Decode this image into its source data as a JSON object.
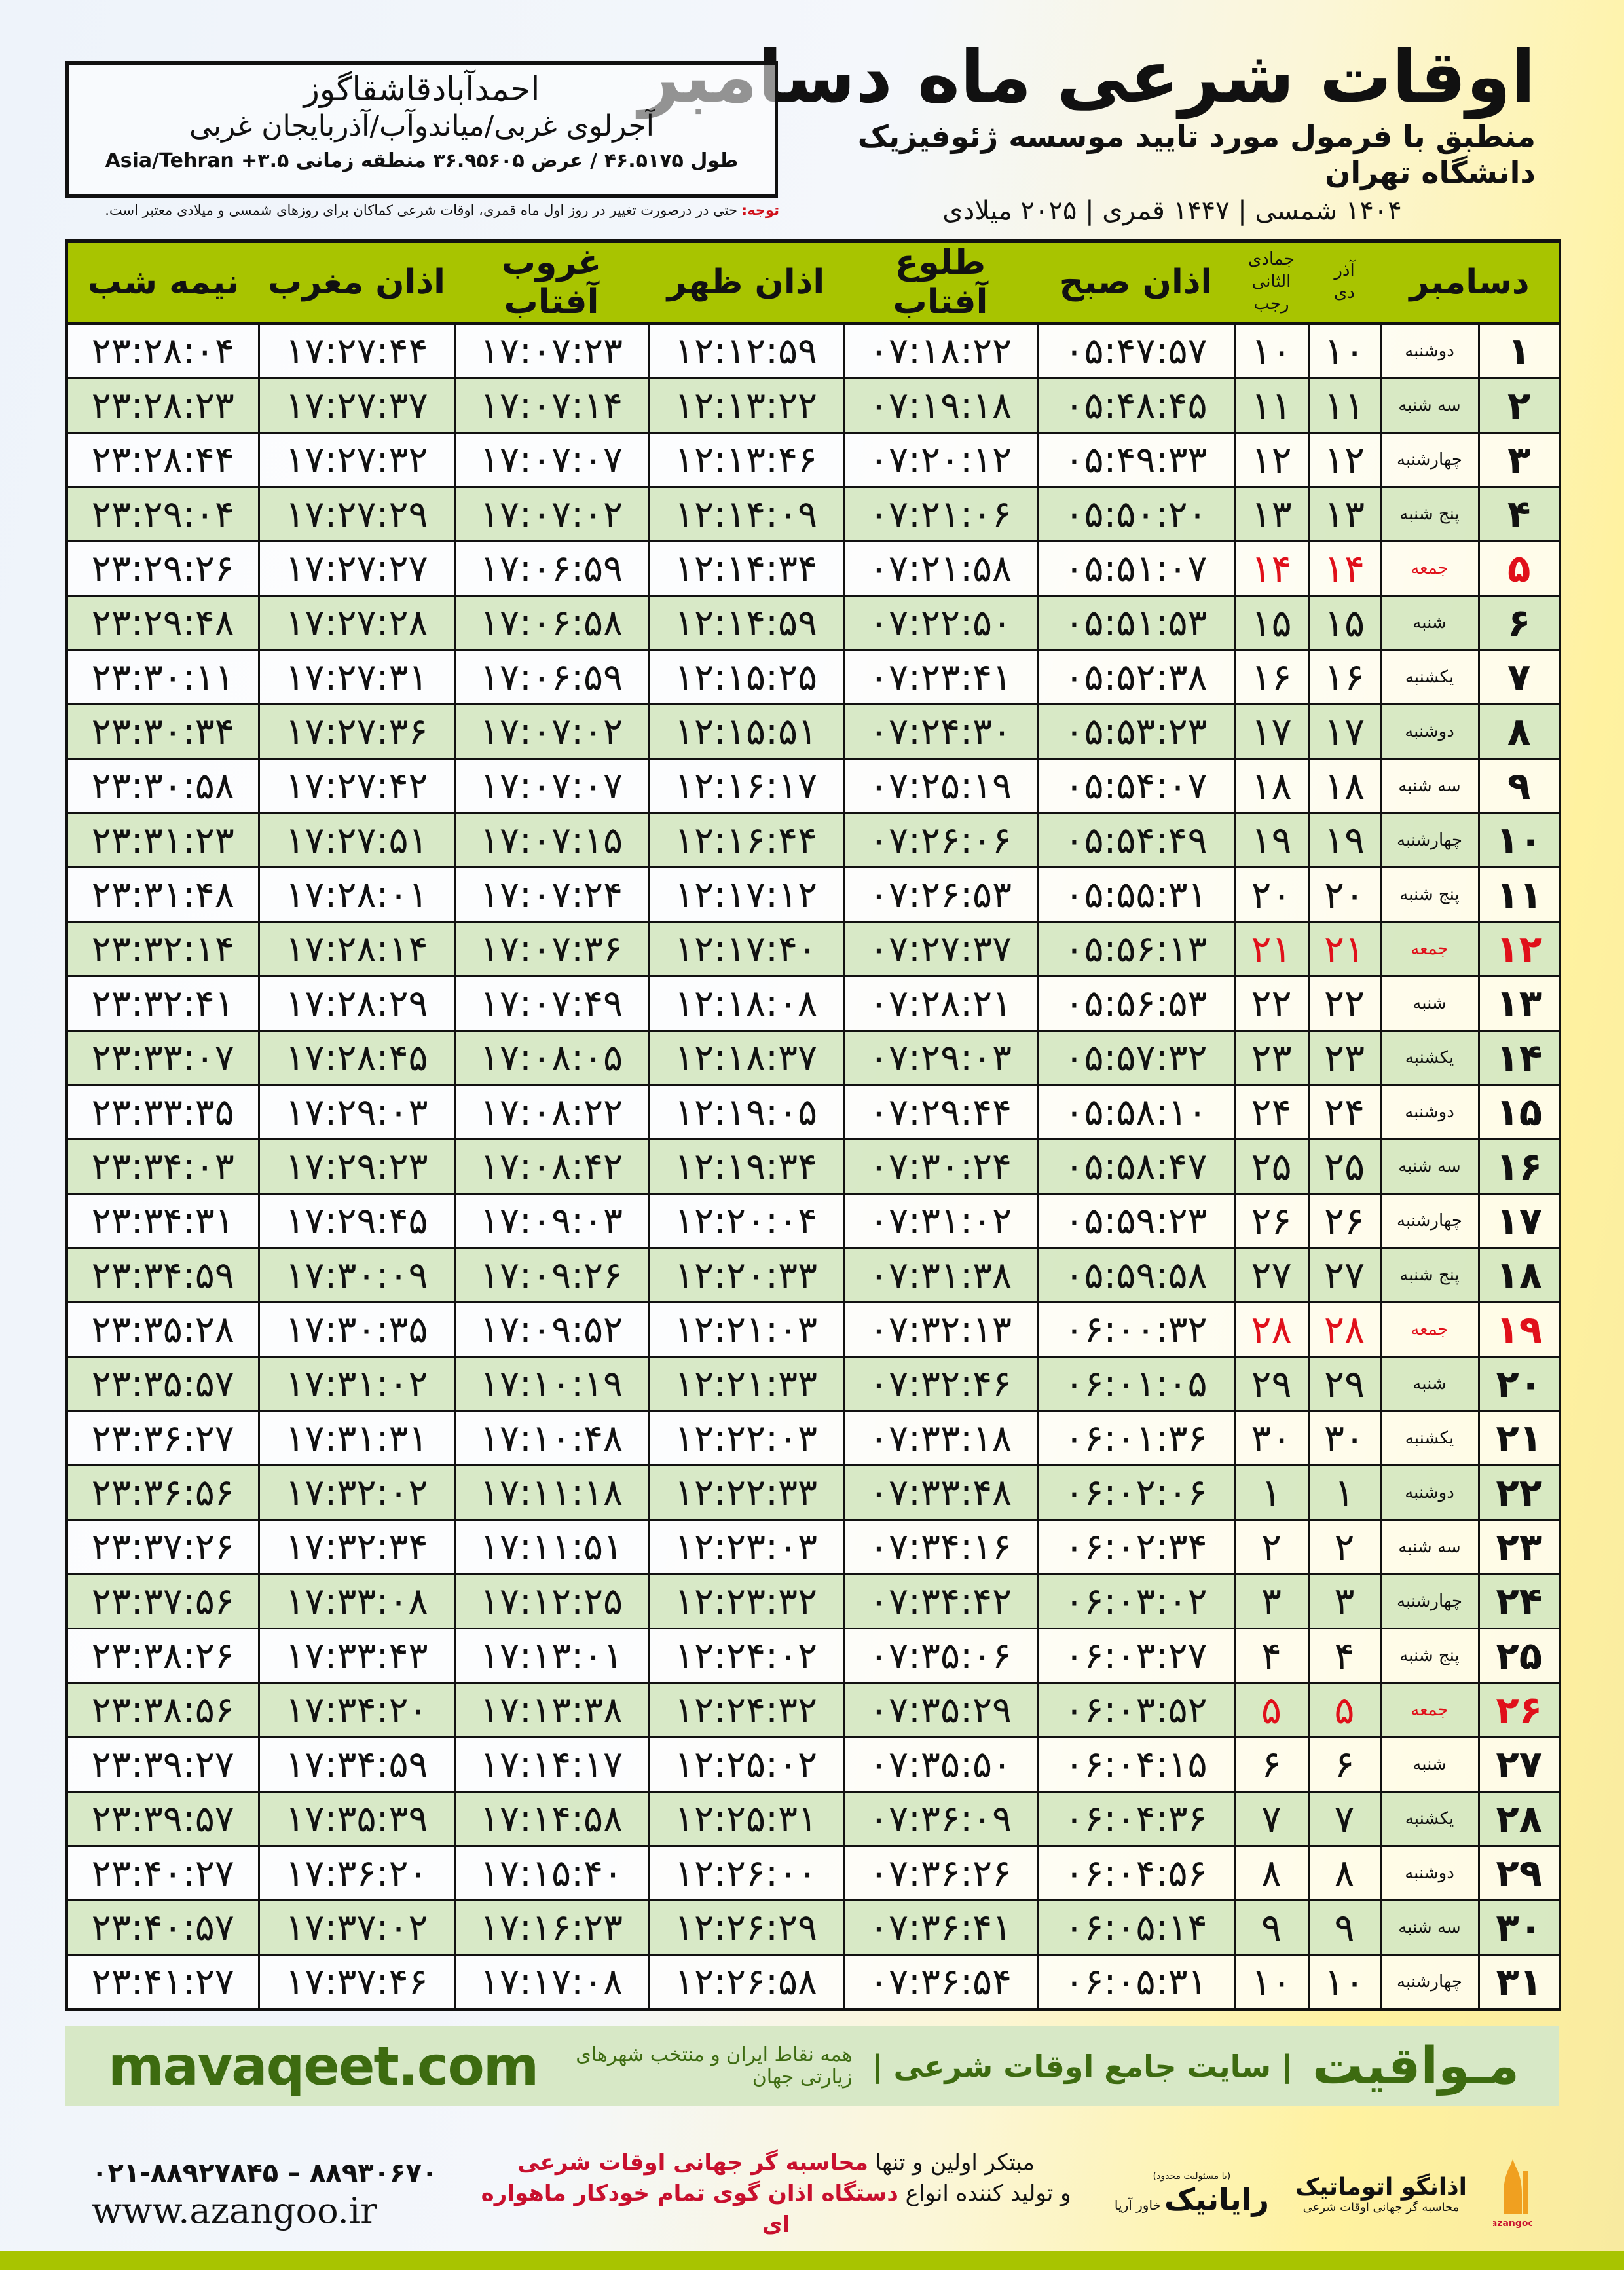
{
  "header": {
    "title": "اوقات شرعی ماه دسامبر",
    "subtitle": "منطبق با فرمول مورد تایید موسسه ژئوفیزیک دانشگاه تهران",
    "dates": "۱۴۰۴ شمسی | ۱۴۴۷ قمری | ۲۰۲۵ میلادی"
  },
  "location": {
    "name": "احمدآبادقاشقاگوز",
    "region": "آجرلوی غربی/میاندوآب/آذربایجان غربی",
    "coords": "طول ۴۶.۵۱۷۵ / عرض ۳۶.۹۵۶۰۵ منطقه زمانی Asia/Tehran +۳.۵"
  },
  "note": {
    "label": "توجه:",
    "text": " حتی در درصورت تغییر در روز اول ماه قمری، اوقات شرعی کماکان برای روزهای شمسی و میلادی معتبر است."
  },
  "table": {
    "columns": {
      "month": "دسامبر",
      "shamsi_top": "آذر",
      "shamsi_bottom": "دی",
      "hijri_top": "جمادی الثانی",
      "hijri_bottom": "رجب",
      "fajr": "اذان صبح",
      "sunrise": "طلوع آفتاب",
      "dhuhr": "اذان ظهر",
      "sunset": "غروب آفتاب",
      "maghrib": "اذان مغرب",
      "midnight": "نیمه شب"
    },
    "friday_color": "#e0101a",
    "header_color": "#a8c400",
    "row_alt_color": "#d6e8c4",
    "fridays": [
      5,
      12,
      19,
      26
    ],
    "rows": [
      [
        "۱",
        "دوشنبه",
        "۱۰",
        "۱۰",
        "۰۵:۴۷:۵۷",
        "۰۷:۱۸:۲۲",
        "۱۲:۱۲:۵۹",
        "۱۷:۰۷:۲۳",
        "۱۷:۲۷:۴۴",
        "۲۳:۲۸:۰۴"
      ],
      [
        "۲",
        "سه شنبه",
        "۱۱",
        "۱۱",
        "۰۵:۴۸:۴۵",
        "۰۷:۱۹:۱۸",
        "۱۲:۱۳:۲۲",
        "۱۷:۰۷:۱۴",
        "۱۷:۲۷:۳۷",
        "۲۳:۲۸:۲۳"
      ],
      [
        "۳",
        "چهارشنبه",
        "۱۲",
        "۱۲",
        "۰۵:۴۹:۳۳",
        "۰۷:۲۰:۱۲",
        "۱۲:۱۳:۴۶",
        "۱۷:۰۷:۰۷",
        "۱۷:۲۷:۳۲",
        "۲۳:۲۸:۴۴"
      ],
      [
        "۴",
        "پنج شنبه",
        "۱۳",
        "۱۳",
        "۰۵:۵۰:۲۰",
        "۰۷:۲۱:۰۶",
        "۱۲:۱۴:۰۹",
        "۱۷:۰۷:۰۲",
        "۱۷:۲۷:۲۹",
        "۲۳:۲۹:۰۴"
      ],
      [
        "۵",
        "جمعه",
        "۱۴",
        "۱۴",
        "۰۵:۵۱:۰۷",
        "۰۷:۲۱:۵۸",
        "۱۲:۱۴:۳۴",
        "۱۷:۰۶:۵۹",
        "۱۷:۲۷:۲۷",
        "۲۳:۲۹:۲۶"
      ],
      [
        "۶",
        "شنبه",
        "۱۵",
        "۱۵",
        "۰۵:۵۱:۵۳",
        "۰۷:۲۲:۵۰",
        "۱۲:۱۴:۵۹",
        "۱۷:۰۶:۵۸",
        "۱۷:۲۷:۲۸",
        "۲۳:۲۹:۴۸"
      ],
      [
        "۷",
        "یکشنبه",
        "۱۶",
        "۱۶",
        "۰۵:۵۲:۳۸",
        "۰۷:۲۳:۴۱",
        "۱۲:۱۵:۲۵",
        "۱۷:۰۶:۵۹",
        "۱۷:۲۷:۳۱",
        "۲۳:۳۰:۱۱"
      ],
      [
        "۸",
        "دوشنبه",
        "۱۷",
        "۱۷",
        "۰۵:۵۳:۲۳",
        "۰۷:۲۴:۳۰",
        "۱۲:۱۵:۵۱",
        "۱۷:۰۷:۰۲",
        "۱۷:۲۷:۳۶",
        "۲۳:۳۰:۳۴"
      ],
      [
        "۹",
        "سه شنبه",
        "۱۸",
        "۱۸",
        "۰۵:۵۴:۰۷",
        "۰۷:۲۵:۱۹",
        "۱۲:۱۶:۱۷",
        "۱۷:۰۷:۰۷",
        "۱۷:۲۷:۴۲",
        "۲۳:۳۰:۵۸"
      ],
      [
        "۱۰",
        "چهارشنبه",
        "۱۹",
        "۱۹",
        "۰۵:۵۴:۴۹",
        "۰۷:۲۶:۰۶",
        "۱۲:۱۶:۴۴",
        "۱۷:۰۷:۱۵",
        "۱۷:۲۷:۵۱",
        "۲۳:۳۱:۲۳"
      ],
      [
        "۱۱",
        "پنج شنبه",
        "۲۰",
        "۲۰",
        "۰۵:۵۵:۳۱",
        "۰۷:۲۶:۵۳",
        "۱۲:۱۷:۱۲",
        "۱۷:۰۷:۲۴",
        "۱۷:۲۸:۰۱",
        "۲۳:۳۱:۴۸"
      ],
      [
        "۱۲",
        "جمعه",
        "۲۱",
        "۲۱",
        "۰۵:۵۶:۱۳",
        "۰۷:۲۷:۳۷",
        "۱۲:۱۷:۴۰",
        "۱۷:۰۷:۳۶",
        "۱۷:۲۸:۱۴",
        "۲۳:۳۲:۱۴"
      ],
      [
        "۱۳",
        "شنبه",
        "۲۲",
        "۲۲",
        "۰۵:۵۶:۵۳",
        "۰۷:۲۸:۲۱",
        "۱۲:۱۸:۰۸",
        "۱۷:۰۷:۴۹",
        "۱۷:۲۸:۲۹",
        "۲۳:۳۲:۴۱"
      ],
      [
        "۱۴",
        "یکشنبه",
        "۲۳",
        "۲۳",
        "۰۵:۵۷:۳۲",
        "۰۷:۲۹:۰۳",
        "۱۲:۱۸:۳۷",
        "۱۷:۰۸:۰۵",
        "۱۷:۲۸:۴۵",
        "۲۳:۳۳:۰۷"
      ],
      [
        "۱۵",
        "دوشنبه",
        "۲۴",
        "۲۴",
        "۰۵:۵۸:۱۰",
        "۰۷:۲۹:۴۴",
        "۱۲:۱۹:۰۵",
        "۱۷:۰۸:۲۲",
        "۱۷:۲۹:۰۳",
        "۲۳:۳۳:۳۵"
      ],
      [
        "۱۶",
        "سه شنبه",
        "۲۵",
        "۲۵",
        "۰۵:۵۸:۴۷",
        "۰۷:۳۰:۲۴",
        "۱۲:۱۹:۳۴",
        "۱۷:۰۸:۴۲",
        "۱۷:۲۹:۲۳",
        "۲۳:۳۴:۰۳"
      ],
      [
        "۱۷",
        "چهارشنبه",
        "۲۶",
        "۲۶",
        "۰۵:۵۹:۲۳",
        "۰۷:۳۱:۰۲",
        "۱۲:۲۰:۰۴",
        "۱۷:۰۹:۰۳",
        "۱۷:۲۹:۴۵",
        "۲۳:۳۴:۳۱"
      ],
      [
        "۱۸",
        "پنج شنبه",
        "۲۷",
        "۲۷",
        "۰۵:۵۹:۵۸",
        "۰۷:۳۱:۳۸",
        "۱۲:۲۰:۳۳",
        "۱۷:۰۹:۲۶",
        "۱۷:۳۰:۰۹",
        "۲۳:۳۴:۵۹"
      ],
      [
        "۱۹",
        "جمعه",
        "۲۸",
        "۲۸",
        "۰۶:۰۰:۳۲",
        "۰۷:۳۲:۱۳",
        "۱۲:۲۱:۰۳",
        "۱۷:۰۹:۵۲",
        "۱۷:۳۰:۳۵",
        "۲۳:۳۵:۲۸"
      ],
      [
        "۲۰",
        "شنبه",
        "۲۹",
        "۲۹",
        "۰۶:۰۱:۰۵",
        "۰۷:۳۲:۴۶",
        "۱۲:۲۱:۳۳",
        "۱۷:۱۰:۱۹",
        "۱۷:۳۱:۰۲",
        "۲۳:۳۵:۵۷"
      ],
      [
        "۲۱",
        "یکشنبه",
        "۳۰",
        "۳۰",
        "۰۶:۰۱:۳۶",
        "۰۷:۳۳:۱۸",
        "۱۲:۲۲:۰۳",
        "۱۷:۱۰:۴۸",
        "۱۷:۳۱:۳۱",
        "۲۳:۳۶:۲۷"
      ],
      [
        "۲۲",
        "دوشنبه",
        "۱",
        "۱",
        "۰۶:۰۲:۰۶",
        "۰۷:۳۳:۴۸",
        "۱۲:۲۲:۳۳",
        "۱۷:۱۱:۱۸",
        "۱۷:۳۲:۰۲",
        "۲۳:۳۶:۵۶"
      ],
      [
        "۲۳",
        "سه شنبه",
        "۲",
        "۲",
        "۰۶:۰۲:۳۴",
        "۰۷:۳۴:۱۶",
        "۱۲:۲۳:۰۳",
        "۱۷:۱۱:۵۱",
        "۱۷:۳۲:۳۴",
        "۲۳:۳۷:۲۶"
      ],
      [
        "۲۴",
        "چهارشنبه",
        "۳",
        "۳",
        "۰۶:۰۳:۰۲",
        "۰۷:۳۴:۴۲",
        "۱۲:۲۳:۳۲",
        "۱۷:۱۲:۲۵",
        "۱۷:۳۳:۰۸",
        "۲۳:۳۷:۵۶"
      ],
      [
        "۲۵",
        "پنج شنبه",
        "۴",
        "۴",
        "۰۶:۰۳:۲۷",
        "۰۷:۳۵:۰۶",
        "۱۲:۲۴:۰۲",
        "۱۷:۱۳:۰۱",
        "۱۷:۳۳:۴۳",
        "۲۳:۳۸:۲۶"
      ],
      [
        "۲۶",
        "جمعه",
        "۵",
        "۵",
        "۰۶:۰۳:۵۲",
        "۰۷:۳۵:۲۹",
        "۱۲:۲۴:۳۲",
        "۱۷:۱۳:۳۸",
        "۱۷:۳۴:۲۰",
        "۲۳:۳۸:۵۶"
      ],
      [
        "۲۷",
        "شنبه",
        "۶",
        "۶",
        "۰۶:۰۴:۱۵",
        "۰۷:۳۵:۵۰",
        "۱۲:۲۵:۰۲",
        "۱۷:۱۴:۱۷",
        "۱۷:۳۴:۵۹",
        "۲۳:۳۹:۲۷"
      ],
      [
        "۲۸",
        "یکشنبه",
        "۷",
        "۷",
        "۰۶:۰۴:۳۶",
        "۰۷:۳۶:۰۹",
        "۱۲:۲۵:۳۱",
        "۱۷:۱۴:۵۸",
        "۱۷:۳۵:۳۹",
        "۲۳:۳۹:۵۷"
      ],
      [
        "۲۹",
        "دوشنبه",
        "۸",
        "۸",
        "۰۶:۰۴:۵۶",
        "۰۷:۳۶:۲۶",
        "۱۲:۲۶:۰۰",
        "۱۷:۱۵:۴۰",
        "۱۷:۳۶:۲۰",
        "۲۳:۴۰:۲۷"
      ],
      [
        "۳۰",
        "سه شنبه",
        "۹",
        "۹",
        "۰۶:۰۵:۱۴",
        "۰۷:۳۶:۴۱",
        "۱۲:۲۶:۲۹",
        "۱۷:۱۶:۲۳",
        "۱۷:۳۷:۰۲",
        "۲۳:۴۰:۵۷"
      ],
      [
        "۳۱",
        "چهارشنبه",
        "۱۰",
        "۱۰",
        "۰۶:۰۵:۳۱",
        "۰۷:۳۶:۵۴",
        "۱۲:۲۶:۵۸",
        "۱۷:۱۷:۰۸",
        "۱۷:۳۷:۴۶",
        "۲۳:۴۱:۲۷"
      ]
    ]
  },
  "banner": {
    "brand": "مـواقیت",
    "tagline": "| سایت جامع اوقات شرعی |",
    "sub": "همه نقاط ایران و منتخب شهرهای زیارتی جهان",
    "url": "mavaqeet.com",
    "color": "#3d6b10"
  },
  "footer": {
    "phone": "۰۲۱-۸۸۹۲۷۸۴۵ – ۸۸۹۳۰۶۷۰",
    "website": "www.azangoo.ir",
    "slogan1_a": "مبتکر اولین و تنها ",
    "slogan1_b": "محاسبه گر جهانی اوقات شرعی",
    "slogan2_a": "و تولید کننده انواع ",
    "slogan2_b": "دستگاه اذان گوی تمام خودکار ماهواره ای",
    "rayanik_small": "(با مسئولیت محدود)",
    "rayanik_name": "رایانیک",
    "rayanik_side": "خاور آریا",
    "azangoo_name": "اذانگو اتوماتیک",
    "azangoo_sub": "محاسبه گر جهانی اوقات شرعی",
    "azangoo_en": "azangoo",
    "accent_red": "#c8102e"
  }
}
